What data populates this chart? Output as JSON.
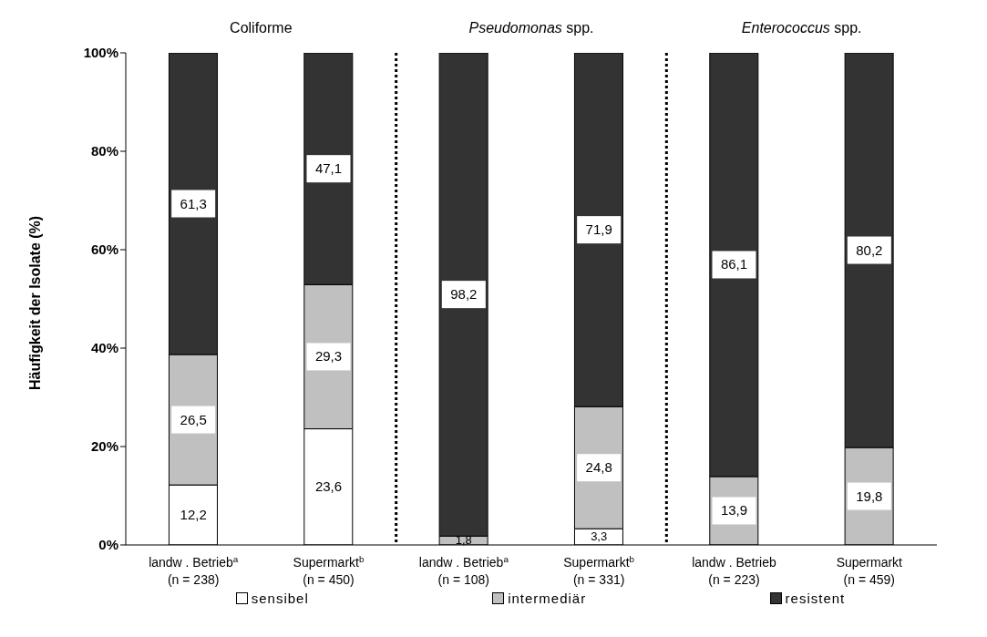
{
  "chart_data": {
    "type": "bar",
    "stacked": true,
    "ylabel": "Häufigkeit der Isolate (%)",
    "annotations": [
      "Coliforme",
      "Pseudomonas spp.",
      "Enterococcus spp."
    ],
    "categories": [
      "landw . Betrieb$^{a}$\n(n = 238)",
      "Supermarkt$^{b}$\n(n = 450)",
      "landw . Betrieb$^{a}$\n(n = 108)",
      "Supermarkt$^{b}$\n(n = 331)",
      "landw . Betrieb\n(n = 223)",
      "Supermarkt\n(n = 459)"
    ],
    "series": [
      {
        "name": "sensibel",
        "color": "#ffffff",
        "values": [
          12.2,
          23.6,
          0,
          3.3,
          0,
          0
        ],
        "value_labels": [
          "12,2",
          "23,6",
          null,
          "3,3",
          null,
          null
        ]
      },
      {
        "name": "intermediär",
        "color": "#c0c0c0",
        "values": [
          26.5,
          29.3,
          1.8,
          24.8,
          13.9,
          19.8
        ],
        "value_labels": [
          "26,5",
          "29,3",
          "1,8",
          "24,8",
          "13,9",
          "19,8"
        ]
      },
      {
        "name": "resistent",
        "color": "#333333",
        "values": [
          61.3,
          47.1,
          98.2,
          71.9,
          86.1,
          80.2
        ],
        "value_labels": [
          "61,3",
          "47,1",
          "98,2",
          "71,9",
          "86,1",
          "80,2"
        ]
      }
    ],
    "ylim": [
      0,
      100
    ],
    "yticks": [
      {
        "value": 0,
        "label": "0%"
      },
      {
        "value": 20,
        "label": "20%"
      },
      {
        "value": 40,
        "label": "40%"
      },
      {
        "value": 60,
        "label": "60%"
      },
      {
        "value": 80,
        "label": "80%"
      },
      {
        "value": 100,
        "label": "100%"
      }
    ],
    "grid": false,
    "legend": "bottom"
  }
}
